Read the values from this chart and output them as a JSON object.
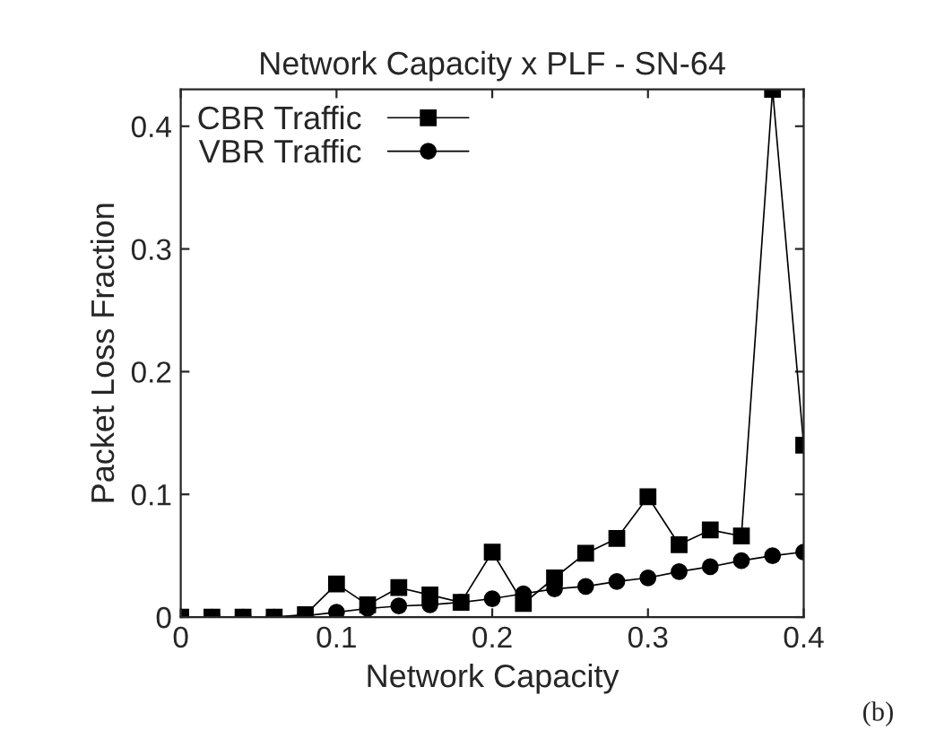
{
  "chart_data": {
    "type": "line",
    "title": "Network Capacity x PLF - SN-64",
    "xlabel": "Network Capacity",
    "ylabel": "Packet Loss Fraction",
    "x": [
      0,
      0.02,
      0.04,
      0.06,
      0.08,
      0.1,
      0.12,
      0.14,
      0.16,
      0.18,
      0.2,
      0.22,
      0.24,
      0.26,
      0.28,
      0.3,
      0.32,
      0.34,
      0.36,
      0.38,
      0.4
    ],
    "series": [
      {
        "name": "CBR Traffic",
        "color": "#000000",
        "marker": "square",
        "values": [
          0,
          0,
          0,
          0,
          0.002,
          0.027,
          0.01,
          0.024,
          0.018,
          0.012,
          0.053,
          0.011,
          0.032,
          0.052,
          0.064,
          0.098,
          0.059,
          0.071,
          0.066,
          0.43,
          0.14
        ]
      },
      {
        "name": "VBR Traffic",
        "color": "#000000",
        "marker": "circle",
        "values": [
          0,
          0,
          0,
          0,
          0.001,
          0.004,
          0.007,
          0.009,
          0.01,
          0.012,
          0.015,
          0.019,
          0.023,
          0.025,
          0.029,
          0.032,
          0.037,
          0.041,
          0.046,
          0.05,
          0.053
        ]
      }
    ],
    "xlim": [
      0,
      0.4
    ],
    "ylim": [
      0,
      0.43
    ],
    "xticks": [
      0,
      0.1,
      0.2,
      0.3,
      0.4
    ],
    "yticks": [
      0,
      0.1,
      0.2,
      0.3,
      0.4
    ],
    "grid": false,
    "legend": "top left",
    "line_style": "solid",
    "annotations": [
      "(b)"
    ]
  }
}
